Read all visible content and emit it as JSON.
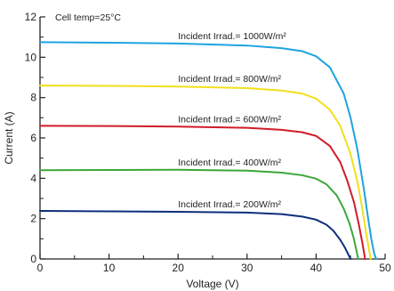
{
  "chart_data": {
    "type": "line",
    "title": "",
    "annotation": "Cell temp=25°C",
    "xlabel": "Voltage (V)",
    "ylabel": "Current (A)",
    "xlim": [
      0,
      50
    ],
    "ylim": [
      0,
      12
    ],
    "xticks": [
      0,
      10,
      20,
      30,
      40,
      50
    ],
    "yticks": [
      0,
      2,
      4,
      6,
      8,
      10,
      12
    ],
    "grid": false,
    "legend": "none",
    "series": [
      {
        "name": "Incident Irrad.= 1000W/m²",
        "color": "#1ea3e0",
        "x": [
          0,
          10,
          20,
          30,
          35,
          38,
          40,
          42,
          44,
          45,
          46,
          47,
          47.5,
          48,
          48.4,
          48.7
        ],
        "y": [
          10.75,
          10.72,
          10.68,
          10.58,
          10.45,
          10.3,
          10.05,
          9.5,
          8.2,
          7.0,
          5.4,
          3.3,
          2.1,
          1.0,
          0.3,
          0
        ]
      },
      {
        "name": "Incident Irrad.= 800W/m²",
        "color": "#f2e01c",
        "x": [
          0,
          10,
          20,
          30,
          35,
          38,
          40,
          42,
          43.5,
          45,
          46,
          46.7,
          47.2,
          47.6,
          47.9
        ],
        "y": [
          8.6,
          8.58,
          8.55,
          8.47,
          8.35,
          8.2,
          7.95,
          7.4,
          6.6,
          5.2,
          3.8,
          2.5,
          1.4,
          0.6,
          0
        ]
      },
      {
        "name": "Incident Irrad.= 600W/m²",
        "color": "#d01c2a",
        "x": [
          0,
          10,
          20,
          30,
          35,
          38,
          40,
          42,
          43.5,
          44.5,
          45.5,
          46.2,
          46.7,
          47.1
        ],
        "y": [
          6.6,
          6.59,
          6.56,
          6.5,
          6.4,
          6.28,
          6.1,
          5.6,
          4.8,
          3.9,
          2.8,
          1.7,
          0.8,
          0
        ]
      },
      {
        "name": "Incident Irrad.= 400W/m²",
        "color": "#3aa83a",
        "x": [
          0,
          10,
          20,
          30,
          35,
          38,
          40,
          41.5,
          43,
          44,
          44.8,
          45.4,
          45.8,
          46.1
        ],
        "y": [
          4.4,
          4.41,
          4.42,
          4.38,
          4.28,
          4.15,
          3.98,
          3.7,
          3.15,
          2.5,
          1.8,
          1.1,
          0.5,
          0
        ]
      },
      {
        "name": "Incident Irrad.= 200W/m²",
        "color": "#0d2f7a",
        "x": [
          0,
          10,
          20,
          30,
          35,
          38,
          40,
          41.5,
          42.5,
          43.5,
          44.2,
          44.7,
          45.0
        ],
        "y": [
          2.38,
          2.36,
          2.34,
          2.3,
          2.22,
          2.1,
          1.95,
          1.7,
          1.4,
          0.95,
          0.55,
          0.2,
          0
        ]
      }
    ]
  }
}
